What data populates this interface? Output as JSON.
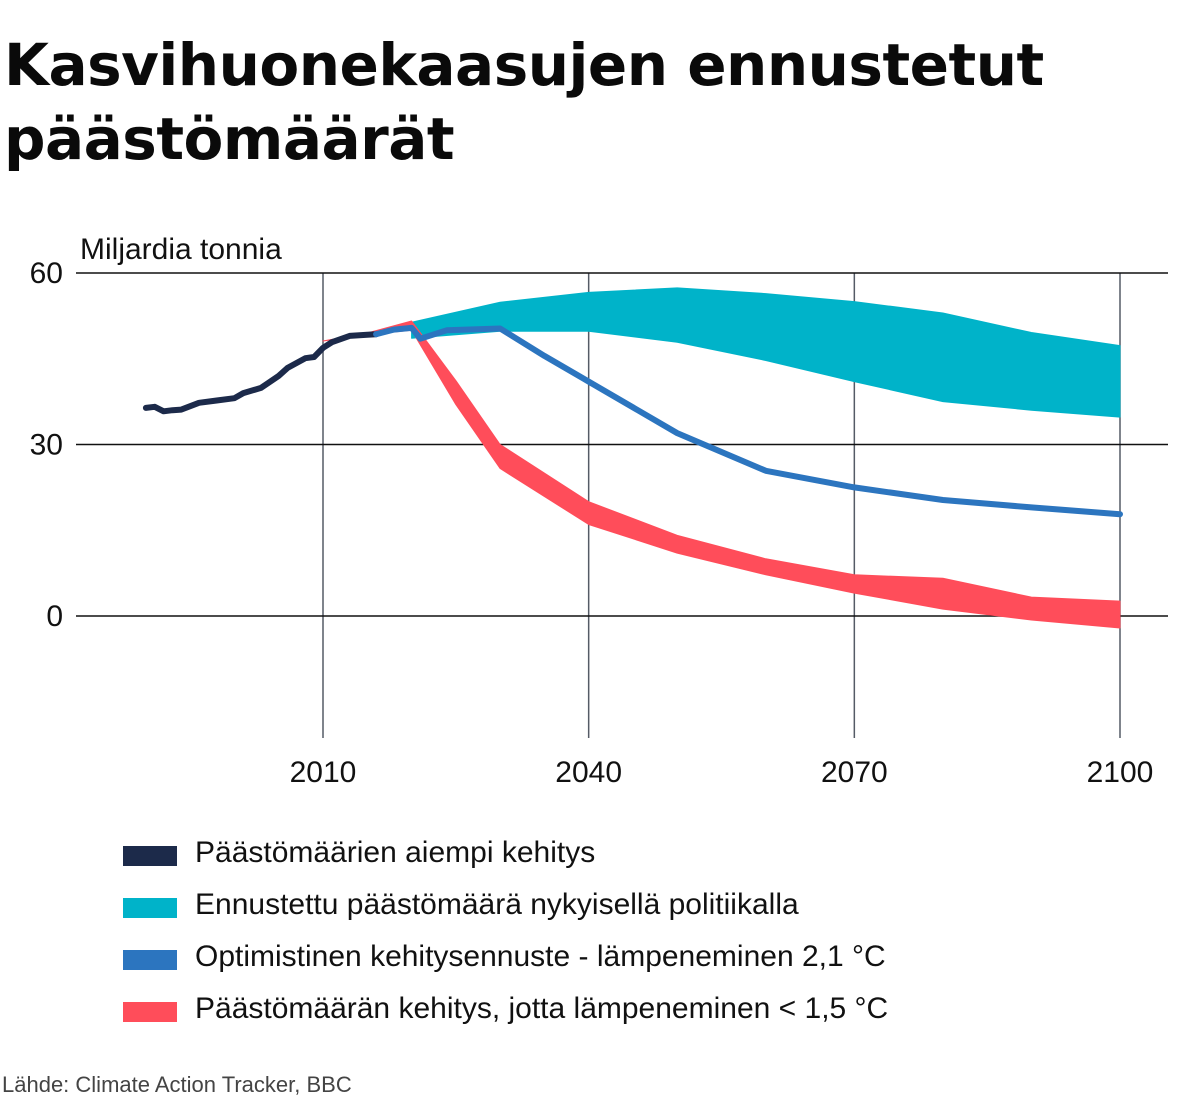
{
  "title": "Kasvihuonekaasujen ennustetut päästömäärät",
  "source": "Lähde: Climate Action Tracker, BBC",
  "chart_data": {
    "type": "area",
    "ylabel": "Miljardia tonnia",
    "xlabel": "",
    "xlim": [
      1990,
      2105
    ],
    "ylim": [
      -22,
      60
    ],
    "x_ticks": [
      2010,
      2040,
      2070,
      2100
    ],
    "y_ticks": [
      0,
      30,
      60
    ],
    "grid": true,
    "legend_position": "bottom",
    "series": [
      {
        "name": "Päästömäärien aiempi kehitys",
        "kind": "line",
        "color": "#1c2a4a",
        "points": [
          [
            1990,
            36.4
          ],
          [
            1991,
            36.6
          ],
          [
            1992,
            35.8
          ],
          [
            1993,
            36.0
          ],
          [
            1994,
            36.1
          ],
          [
            1996,
            37.3
          ],
          [
            1998,
            37.7
          ],
          [
            2000,
            38.1
          ],
          [
            2001,
            39.0
          ],
          [
            2003,
            39.9
          ],
          [
            2005,
            42.0
          ],
          [
            2006,
            43.4
          ],
          [
            2008,
            45.1
          ],
          [
            2009,
            45.3
          ],
          [
            2010,
            46.9
          ],
          [
            2011,
            47.9
          ],
          [
            2013,
            49.0
          ],
          [
            2015,
            49.2
          ],
          [
            2016,
            49.3
          ]
        ]
      },
      {
        "name": "Ennustettu päästömäärä nykyisellä politiikalla",
        "kind": "band",
        "color": "#00b3c9",
        "x": [
          2020,
          2030,
          2040,
          2050,
          2060,
          2070,
          2080,
          2090,
          2100
        ],
        "upper": [
          51.4,
          54.9,
          56.6,
          57.4,
          56.4,
          55.0,
          53.0,
          49.6,
          47.3
        ],
        "lower": [
          48.6,
          49.8,
          49.8,
          47.9,
          44.7,
          41.0,
          37.5,
          36.0,
          34.8
        ]
      },
      {
        "name": "Optimistinen kehitysennuste - lämpeneminen 2,1 °C",
        "kind": "line",
        "color": "#2c75bf",
        "points": [
          [
            2016,
            49.3
          ],
          [
            2018,
            50.1
          ],
          [
            2020,
            50.4
          ],
          [
            2021,
            48.5
          ],
          [
            2024,
            50.0
          ],
          [
            2030,
            50.3
          ],
          [
            2035,
            45.5
          ],
          [
            2040,
            41.0
          ],
          [
            2050,
            32.0
          ],
          [
            2060,
            25.4
          ],
          [
            2070,
            22.5
          ],
          [
            2080,
            20.3
          ],
          [
            2090,
            19.0
          ],
          [
            2100,
            17.8
          ]
        ]
      },
      {
        "name": "Päästömäärän kehitys, jotta lämpeneminen < 1,5 °C",
        "kind": "band",
        "color": "#ff4d5a",
        "x": [
          2010,
          2015,
          2020,
          2025,
          2030,
          2040,
          2050,
          2060,
          2070,
          2080,
          2090,
          2100
        ],
        "upper": [
          48.1,
          49.5,
          51.6,
          41.2,
          30.0,
          20.0,
          14.1,
          10.0,
          7.2,
          6.6,
          3.3,
          2.6
        ],
        "lower": [
          48.1,
          49.2,
          50.0,
          37.0,
          25.8,
          16.0,
          11.0,
          7.2,
          4.0,
          1.2,
          -0.7,
          -2.1
        ]
      }
    ]
  }
}
